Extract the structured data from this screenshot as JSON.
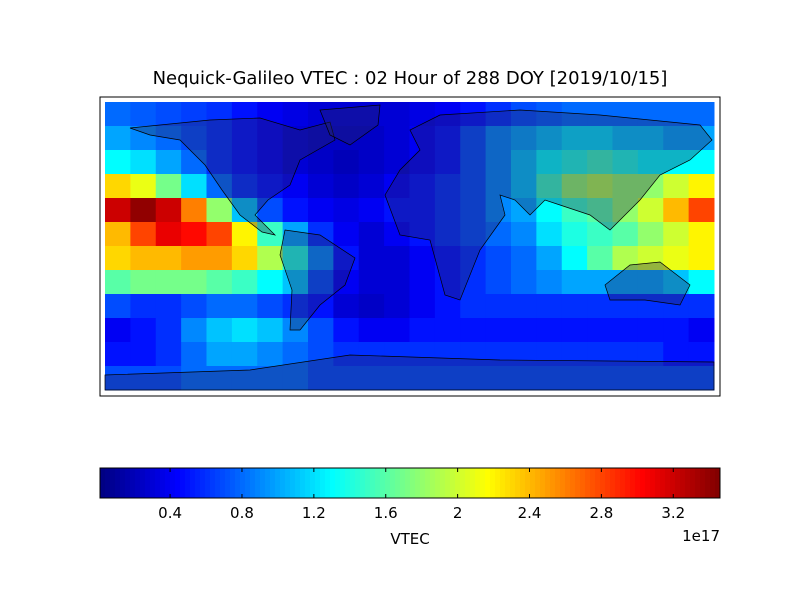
{
  "chart_data": {
    "type": "heatmap",
    "title": "Nequick-Galileo VTEC : 02 Hour of 288 DOY [2019/10/15]",
    "colorbar_label": "VTEC",
    "colorbar_offset_label": "1e17",
    "colormap": "jet",
    "clim": [
      0.01,
      3.46
    ],
    "cticks": [
      0.4,
      0.8,
      1.2,
      1.6,
      2.0,
      2.4,
      2.8,
      3.2
    ],
    "z": [
      [
        0.8,
        0.75,
        0.7,
        0.65,
        0.6,
        0.5,
        0.4,
        0.35,
        0.3,
        0.3,
        0.3,
        0.3,
        0.35,
        0.4,
        0.5,
        0.6,
        0.7,
        0.75,
        0.8,
        0.8,
        0.8,
        0.8,
        0.8,
        0.8
      ],
      [
        1.0,
        0.9,
        0.8,
        0.7,
        0.6,
        0.5,
        0.4,
        0.3,
        0.25,
        0.25,
        0.25,
        0.3,
        0.4,
        0.5,
        0.7,
        0.9,
        1.0,
        1.1,
        1.2,
        1.2,
        1.1,
        1.1,
        1.0,
        1.0
      ],
      [
        1.3,
        1.2,
        1.0,
        0.8,
        0.6,
        0.5,
        0.4,
        0.3,
        0.25,
        0.2,
        0.25,
        0.3,
        0.4,
        0.5,
        0.7,
        0.9,
        1.1,
        1.3,
        1.4,
        1.5,
        1.4,
        1.3,
        1.3,
        1.3
      ],
      [
        2.3,
        2.1,
        1.7,
        1.2,
        0.8,
        0.6,
        0.5,
        0.4,
        0.3,
        0.25,
        0.3,
        0.4,
        0.5,
        0.6,
        0.7,
        0.9,
        1.1,
        1.5,
        1.8,
        1.9,
        1.8,
        1.8,
        2.0,
        2.2
      ],
      [
        3.2,
        3.4,
        3.2,
        2.6,
        1.8,
        1.1,
        0.7,
        0.5,
        0.4,
        0.35,
        0.4,
        0.5,
        0.5,
        0.6,
        0.7,
        0.9,
        1.0,
        1.3,
        1.5,
        1.6,
        1.8,
        2.0,
        2.4,
        2.8
      ],
      [
        2.4,
        2.8,
        3.1,
        3.0,
        2.8,
        2.2,
        1.5,
        1.0,
        0.6,
        0.4,
        0.3,
        0.4,
        0.5,
        0.6,
        0.7,
        0.8,
        0.9,
        1.2,
        1.4,
        1.5,
        1.6,
        1.8,
        2.0,
        2.2
      ],
      [
        2.3,
        2.4,
        2.4,
        2.5,
        2.5,
        2.3,
        1.9,
        1.4,
        0.9,
        0.5,
        0.3,
        0.3,
        0.4,
        0.5,
        0.6,
        0.7,
        0.8,
        1.0,
        1.3,
        1.6,
        1.9,
        2.0,
        2.1,
        2.2
      ],
      [
        1.6,
        1.7,
        1.7,
        1.7,
        1.6,
        1.5,
        1.3,
        1.1,
        0.7,
        0.4,
        0.3,
        0.3,
        0.4,
        0.5,
        0.6,
        0.7,
        0.8,
        0.9,
        1.0,
        1.0,
        1.0,
        1.0,
        1.1,
        1.3
      ],
      [
        0.7,
        0.6,
        0.6,
        0.7,
        0.8,
        0.8,
        0.7,
        0.6,
        0.5,
        0.3,
        0.25,
        0.3,
        0.4,
        0.5,
        0.6,
        0.6,
        0.6,
        0.6,
        0.6,
        0.6,
        0.6,
        0.6,
        0.6,
        0.6
      ],
      [
        0.4,
        0.5,
        0.6,
        0.9,
        1.1,
        1.2,
        1.1,
        0.9,
        0.7,
        0.5,
        0.4,
        0.4,
        0.5,
        0.5,
        0.5,
        0.5,
        0.5,
        0.5,
        0.5,
        0.5,
        0.5,
        0.5,
        0.5,
        0.4
      ],
      [
        0.5,
        0.5,
        0.6,
        0.8,
        1.0,
        1.0,
        0.9,
        0.8,
        0.7,
        0.6,
        0.6,
        0.6,
        0.6,
        0.6,
        0.6,
        0.6,
        0.6,
        0.6,
        0.6,
        0.6,
        0.6,
        0.6,
        0.5,
        0.5
      ],
      [
        0.7,
        0.7,
        0.7,
        0.8,
        0.8,
        0.8,
        0.8,
        0.8,
        0.7,
        0.7,
        0.7,
        0.7,
        0.7,
        0.7,
        0.7,
        0.7,
        0.7,
        0.7,
        0.7,
        0.7,
        0.7,
        0.7,
        0.7,
        0.7
      ]
    ]
  }
}
